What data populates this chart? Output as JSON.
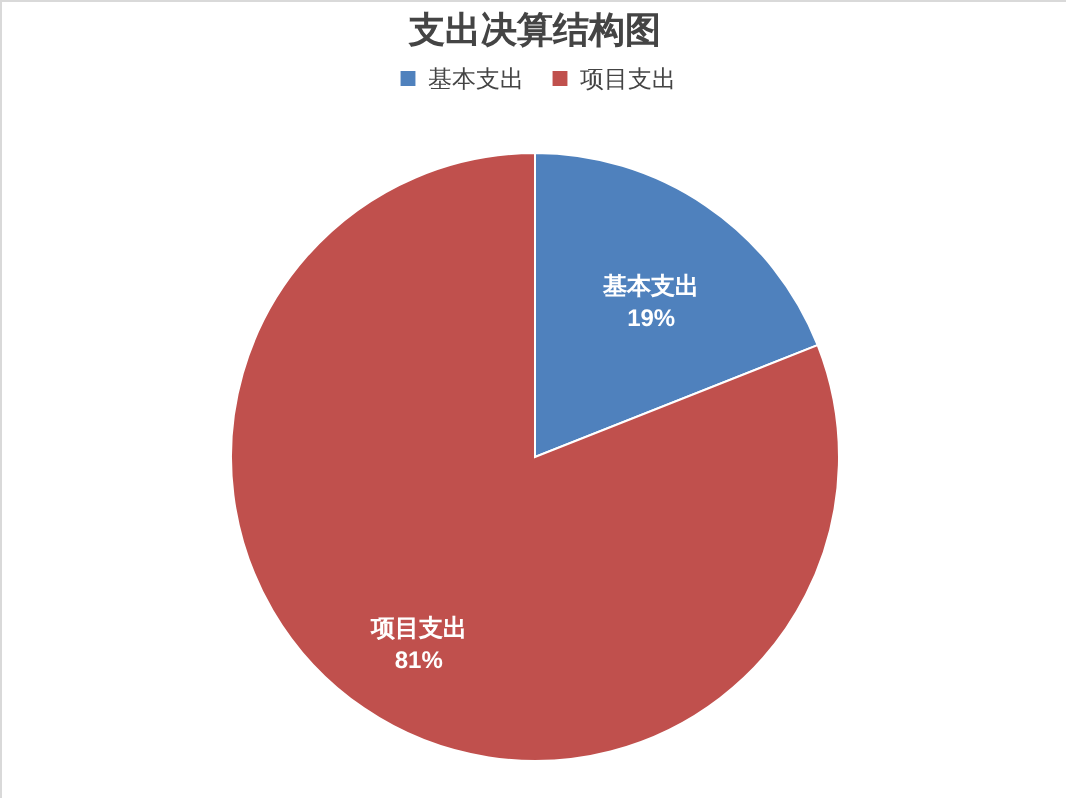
{
  "chart_data": {
    "type": "pie",
    "title": "支出决算结构图",
    "categories": [
      "基本支出",
      "项目支出"
    ],
    "values": [
      19,
      81
    ],
    "colors": [
      "#4f81bd",
      "#c0504d"
    ],
    "value_labels": [
      "19%",
      "81%"
    ],
    "legend": "top"
  }
}
